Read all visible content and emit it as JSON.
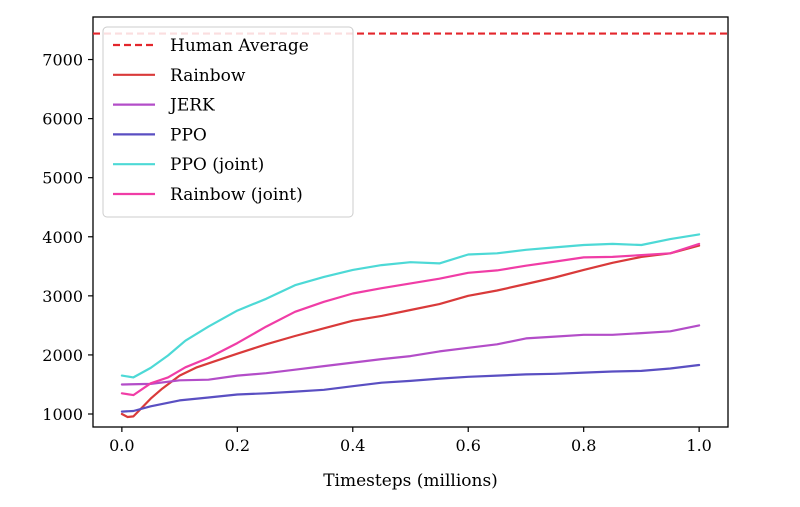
{
  "chart_data": {
    "type": "line",
    "title": "",
    "xlabel": "Timesteps (millions)",
    "ylabel": "",
    "xlim": [
      -0.05,
      1.05
    ],
    "ylim": [
      780,
      7720
    ],
    "xticks": [
      0.0,
      0.2,
      0.4,
      0.6,
      0.8,
      1.0
    ],
    "xtick_labels": [
      "0.0",
      "0.2",
      "0.4",
      "0.6",
      "0.8",
      "1.0"
    ],
    "yticks": [
      1000,
      2000,
      3000,
      4000,
      5000,
      6000,
      7000
    ],
    "ytick_labels": [
      "1000",
      "2000",
      "3000",
      "4000",
      "5000",
      "6000",
      "7000"
    ],
    "grid": false,
    "legend_position": "top-left",
    "reference_line": {
      "name": "Human Average",
      "y": 7440,
      "color": "#e3262c",
      "style": "dashed"
    },
    "series": [
      {
        "name": "Rainbow",
        "color": "#d93a3a",
        "x": [
          0.0,
          0.01,
          0.02,
          0.03,
          0.05,
          0.07,
          0.1,
          0.13,
          0.16,
          0.2,
          0.25,
          0.3,
          0.35,
          0.4,
          0.45,
          0.5,
          0.55,
          0.6,
          0.65,
          0.7,
          0.75,
          0.8,
          0.85,
          0.9,
          0.95,
          1.0
        ],
        "y": [
          1000,
          950,
          960,
          1060,
          1260,
          1430,
          1650,
          1790,
          1890,
          2020,
          2180,
          2320,
          2450,
          2580,
          2660,
          2760,
          2860,
          3000,
          3090,
          3200,
          3310,
          3440,
          3560,
          3660,
          3720,
          3850
        ]
      },
      {
        "name": "JERK",
        "color": "#b34dc8",
        "x": [
          0.0,
          0.05,
          0.1,
          0.15,
          0.2,
          0.25,
          0.3,
          0.35,
          0.4,
          0.45,
          0.5,
          0.55,
          0.6,
          0.65,
          0.7,
          0.75,
          0.8,
          0.85,
          0.9,
          0.95,
          1.0
        ],
        "y": [
          1500,
          1510,
          1570,
          1580,
          1650,
          1690,
          1750,
          1810,
          1870,
          1930,
          1980,
          2060,
          2120,
          2180,
          2280,
          2310,
          2340,
          2340,
          2370,
          2400,
          2500
        ]
      },
      {
        "name": "PPO",
        "color": "#5a4fc2",
        "x": [
          0.0,
          0.02,
          0.05,
          0.1,
          0.15,
          0.2,
          0.25,
          0.3,
          0.35,
          0.4,
          0.45,
          0.5,
          0.55,
          0.6,
          0.65,
          0.7,
          0.75,
          0.8,
          0.85,
          0.9,
          0.95,
          1.0
        ],
        "y": [
          1040,
          1050,
          1130,
          1230,
          1280,
          1330,
          1350,
          1380,
          1410,
          1470,
          1530,
          1560,
          1600,
          1630,
          1650,
          1670,
          1680,
          1700,
          1720,
          1730,
          1770,
          1830
        ]
      },
      {
        "name": "PPO (joint)",
        "color": "#4dd9d6",
        "x": [
          0.0,
          0.02,
          0.05,
          0.08,
          0.11,
          0.15,
          0.2,
          0.25,
          0.3,
          0.35,
          0.4,
          0.45,
          0.5,
          0.55,
          0.6,
          0.65,
          0.7,
          0.75,
          0.8,
          0.85,
          0.9,
          0.95,
          1.0
        ],
        "y": [
          1650,
          1620,
          1780,
          1990,
          2240,
          2480,
          2750,
          2950,
          3180,
          3320,
          3440,
          3520,
          3570,
          3550,
          3700,
          3720,
          3780,
          3820,
          3860,
          3880,
          3860,
          3960,
          4040
        ]
      },
      {
        "name": "Rainbow (joint)",
        "color": "#f03da6",
        "x": [
          0.0,
          0.02,
          0.05,
          0.08,
          0.11,
          0.15,
          0.2,
          0.25,
          0.3,
          0.35,
          0.4,
          0.45,
          0.5,
          0.55,
          0.6,
          0.65,
          0.7,
          0.75,
          0.8,
          0.85,
          0.9,
          0.95,
          1.0
        ],
        "y": [
          1350,
          1320,
          1520,
          1620,
          1790,
          1950,
          2200,
          2480,
          2730,
          2900,
          3040,
          3130,
          3210,
          3290,
          3390,
          3430,
          3510,
          3580,
          3650,
          3660,
          3690,
          3720,
          3880
        ]
      }
    ]
  }
}
